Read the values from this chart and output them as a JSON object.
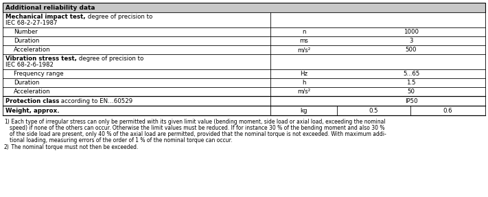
{
  "header": "Additional reliability data",
  "header_bg": "#c8c8c8",
  "rows": [
    {
      "label_bold": "Mechanical impact test,",
      "label_normal": " degree of precision to",
      "label_line2": "IEC 68-2-27-1987",
      "unit": "",
      "val1": "",
      "val2": "",
      "indent": false,
      "multiline": true,
      "thick_top": false
    },
    {
      "label_bold": "",
      "label_normal": "Number",
      "label_line2": "",
      "unit": "n",
      "val1": "",
      "val2": "1000",
      "indent": true,
      "multiline": false,
      "thick_top": false
    },
    {
      "label_bold": "",
      "label_normal": "Duration",
      "label_line2": "",
      "unit": "ms",
      "val1": "",
      "val2": "3",
      "indent": true,
      "multiline": false,
      "thick_top": false
    },
    {
      "label_bold": "",
      "label_normal": "Acceleration",
      "label_line2": "",
      "unit": "m/s²",
      "val1": "",
      "val2": "500",
      "indent": true,
      "multiline": false,
      "thick_top": false
    },
    {
      "label_bold": "Vibration stress test,",
      "label_normal": " degree of precision to",
      "label_line2": "IEC 68-2-6-1982",
      "unit": "",
      "val1": "",
      "val2": "",
      "indent": false,
      "multiline": true,
      "thick_top": false
    },
    {
      "label_bold": "",
      "label_normal": "Frequency range",
      "label_line2": "",
      "unit": "Hz",
      "val1": "",
      "val2": "5...65",
      "indent": true,
      "multiline": false,
      "thick_top": false
    },
    {
      "label_bold": "",
      "label_normal": "Duration",
      "label_line2": "",
      "unit": "h",
      "val1": "",
      "val2": "1.5",
      "indent": true,
      "multiline": false,
      "thick_top": false
    },
    {
      "label_bold": "",
      "label_normal": "Acceleration",
      "label_line2": "",
      "unit": "m/s²",
      "val1": "",
      "val2": "50",
      "indent": true,
      "multiline": false,
      "thick_top": false
    },
    {
      "label_bold": "Protection class",
      "label_normal": " according to EN…60529",
      "label_line2": "",
      "unit": "",
      "val1": "",
      "val2": "IP50",
      "indent": false,
      "multiline": false,
      "thick_top": true
    },
    {
      "label_bold": "Weight, approx.",
      "label_normal": "",
      "label_line2": "",
      "unit": "kg",
      "val1": "0.5",
      "val2": "0.6",
      "indent": false,
      "multiline": false,
      "thick_top": true
    }
  ],
  "footnote1_super": "1)",
  "footnote1_text": " Each type of irregular stress can only be permitted with its given limit value (bending moment, side load or axial load, exceeding the nominal\nspeed) if none of the others can occur. Otherwise the limit values must be reduced. If for instance 30 % of the bending moment and also 30 %\nof the side load are present, only 40 % of the axial load are permitted, provided that the nominal torque is not exceeded. With maximum addi-\ntional loading, measuring errors of the order of 1 % of the nominal torque can occur.",
  "footnote2_super": "2)",
  "footnote2_text": " The nominal torque must not then be exceeded.",
  "figsize": [
    7.11,
    2.87
  ],
  "dpi": 100
}
